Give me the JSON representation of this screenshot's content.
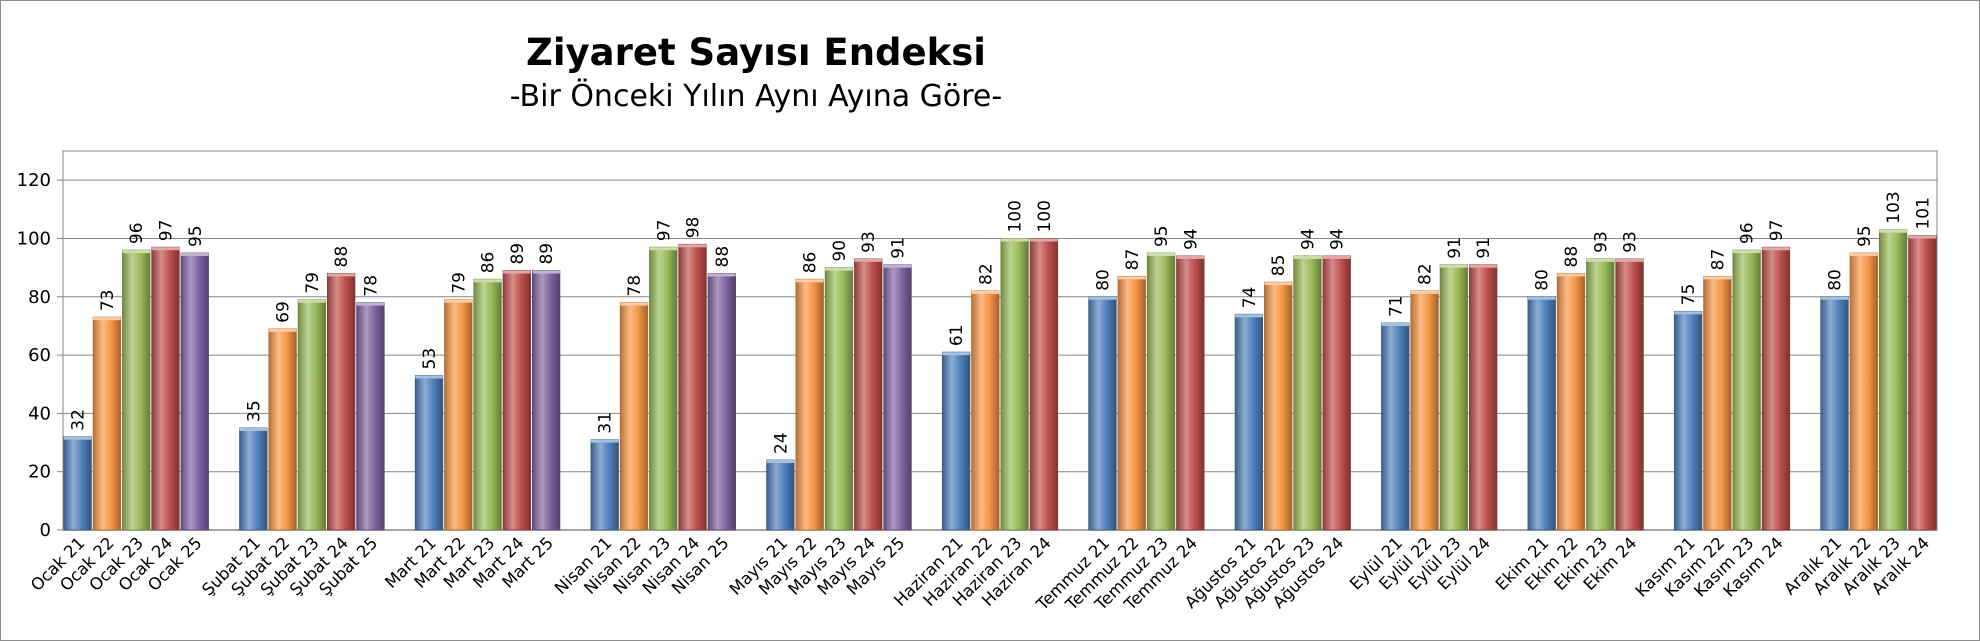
{
  "chart_data": {
    "type": "bar",
    "title": "Ziyaret Sayısı Endeksi",
    "subtitle": "-Bir Önceki Yılın Aynı Ayına Göre-",
    "ylim": [
      0,
      130
    ],
    "yticks": [
      0,
      20,
      40,
      60,
      80,
      100,
      120
    ],
    "grid": true,
    "series_colors": [
      "#4f81bd",
      "#f79646",
      "#9bbb59",
      "#c0504d",
      "#8064a2"
    ],
    "groups": [
      {
        "bars": [
          {
            "label": "Ocak 21",
            "value": 32
          },
          {
            "label": "Ocak 22",
            "value": 73
          },
          {
            "label": "Ocak 23",
            "value": 96
          },
          {
            "label": "Ocak 24",
            "value": 97
          },
          {
            "label": "Ocak 25",
            "value": 95
          }
        ]
      },
      {
        "bars": [
          {
            "label": "Şubat 21",
            "value": 35
          },
          {
            "label": "Şubat 22",
            "value": 69
          },
          {
            "label": "Şubat 23",
            "value": 79
          },
          {
            "label": "Şubat 24",
            "value": 88
          },
          {
            "label": "Şubat 25",
            "value": 78
          }
        ]
      },
      {
        "bars": [
          {
            "label": "Mart 21",
            "value": 53
          },
          {
            "label": "Mart 22",
            "value": 79
          },
          {
            "label": "Mart 23",
            "value": 86
          },
          {
            "label": "Mart 24",
            "value": 89
          },
          {
            "label": "Mart 25",
            "value": 89
          }
        ]
      },
      {
        "bars": [
          {
            "label": "Nisan 21",
            "value": 31
          },
          {
            "label": "Nisan 22",
            "value": 78
          },
          {
            "label": "Nisan 23",
            "value": 97
          },
          {
            "label": "Nisan 24",
            "value": 98
          },
          {
            "label": "Nisan 25",
            "value": 88
          }
        ]
      },
      {
        "bars": [
          {
            "label": "Mayıs 21",
            "value": 24
          },
          {
            "label": "Mayıs 22",
            "value": 86
          },
          {
            "label": "Mayıs 23",
            "value": 90
          },
          {
            "label": "Mayıs 24",
            "value": 93
          },
          {
            "label": "Mayıs 25",
            "value": 91
          }
        ]
      },
      {
        "bars": [
          {
            "label": "Haziran 21",
            "value": 61
          },
          {
            "label": "Haziran 22",
            "value": 82
          },
          {
            "label": "Haziran 23",
            "value": 100
          },
          {
            "label": "Haziran 24",
            "value": 100
          }
        ]
      },
      {
        "bars": [
          {
            "label": "Temmuz 21",
            "value": 80
          },
          {
            "label": "Temmuz 22",
            "value": 87
          },
          {
            "label": "Temmuz 23",
            "value": 95
          },
          {
            "label": "Temmuz 24",
            "value": 94
          }
        ]
      },
      {
        "bars": [
          {
            "label": "Ağustos 21",
            "value": 74
          },
          {
            "label": "Ağustos 22",
            "value": 85
          },
          {
            "label": "Ağustos 23",
            "value": 94
          },
          {
            "label": "Ağustos 24",
            "value": 94
          }
        ]
      },
      {
        "bars": [
          {
            "label": "Eylül 21",
            "value": 71
          },
          {
            "label": "Eylül 22",
            "value": 82
          },
          {
            "label": "Eylül 23",
            "value": 91
          },
          {
            "label": "Eylül 24",
            "value": 91
          }
        ]
      },
      {
        "bars": [
          {
            "label": "Ekim 21",
            "value": 80
          },
          {
            "label": "Ekim 22",
            "value": 88
          },
          {
            "label": "Ekim 23",
            "value": 93
          },
          {
            "label": "Ekim 24",
            "value": 93
          }
        ]
      },
      {
        "bars": [
          {
            "label": "Kasım 21",
            "value": 75
          },
          {
            "label": "Kasım 22",
            "value": 87
          },
          {
            "label": "Kasım 23",
            "value": 96
          },
          {
            "label": "Kasım 24",
            "value": 97
          }
        ]
      },
      {
        "bars": [
          {
            "label": "Aralık 21",
            "value": 80
          },
          {
            "label": "Aralık 22",
            "value": 95
          },
          {
            "label": "Aralık 23",
            "value": 103
          },
          {
            "label": "Aralık 24",
            "value": 101
          }
        ]
      }
    ]
  }
}
